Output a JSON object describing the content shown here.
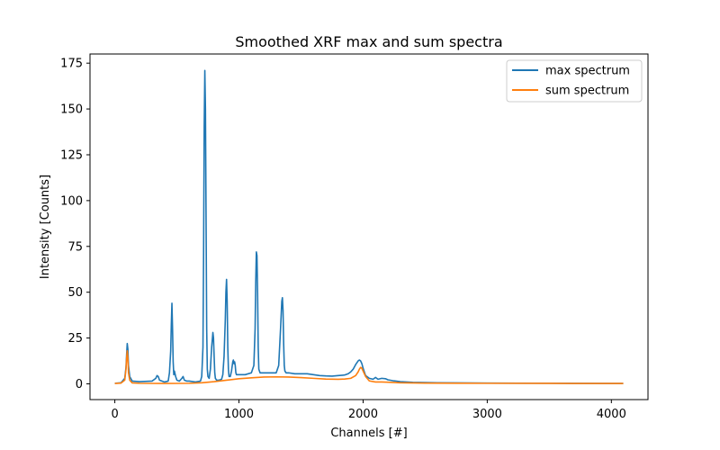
{
  "chart_data": {
    "type": "line",
    "title": "Smoothed XRF max and sum spectra",
    "xlabel": "Channels [#]",
    "ylabel": "Intensity [Counts]",
    "xlim": [
      -200,
      4295
    ],
    "ylim": [
      -8.6,
      180
    ],
    "xticks": [
      0,
      1000,
      2000,
      3000,
      4000
    ],
    "yticks": [
      0,
      25,
      50,
      75,
      100,
      125,
      150,
      175
    ],
    "grid": false,
    "legend": {
      "position": "top-right"
    },
    "series": [
      {
        "name": "max spectrum",
        "color": "#1f77b4",
        "x": [
          0,
          50,
          80,
          90,
          95,
          100,
          105,
          110,
          120,
          140,
          200,
          300,
          330,
          340,
          350,
          360,
          400,
          430,
          440,
          450,
          455,
          460,
          465,
          470,
          475,
          480,
          490,
          500,
          520,
          540,
          550,
          560,
          580,
          600,
          650,
          690,
          700,
          710,
          715,
          720,
          725,
          730,
          735,
          740,
          745,
          750,
          760,
          770,
          780,
          790,
          795,
          800,
          805,
          810,
          820,
          840,
          860,
          870,
          880,
          890,
          895,
          900,
          905,
          910,
          915,
          920,
          930,
          940,
          950,
          955,
          960,
          965,
          970,
          975,
          980,
          990,
          1000,
          1050,
          1100,
          1120,
          1130,
          1135,
          1140,
          1145,
          1150,
          1155,
          1160,
          1170,
          1180,
          1200,
          1250,
          1300,
          1320,
          1335,
          1345,
          1350,
          1355,
          1360,
          1365,
          1370,
          1380,
          1400,
          1450,
          1500,
          1550,
          1600,
          1650,
          1700,
          1750,
          1800,
          1850,
          1880,
          1900,
          1920,
          1940,
          1960,
          1970,
          1980,
          1990,
          2000,
          2020,
          2050,
          2080,
          2100,
          2120,
          2150,
          2180,
          2200,
          2250,
          2300,
          2400,
          2600,
          3000,
          3500,
          4000,
          4096
        ],
        "y": [
          0.3,
          0.6,
          3,
          9,
          16,
          22,
          19,
          10,
          4,
          1.5,
          1.2,
          1.5,
          3,
          4.5,
          4,
          2,
          1,
          1.5,
          6,
          18,
          32,
          44,
          30,
          12,
          5,
          7,
          4,
          2,
          1.5,
          3,
          4,
          2,
          1.5,
          1.5,
          1,
          1.5,
          4,
          20,
          70,
          140,
          171,
          150,
          90,
          30,
          8,
          4,
          3,
          8,
          20,
          28,
          25,
          15,
          6,
          3,
          2,
          2,
          2.5,
          5,
          15,
          35,
          50,
          57,
          45,
          20,
          8,
          4,
          4,
          7,
          12,
          13,
          11,
          12,
          10,
          6,
          5,
          5,
          5,
          5,
          6,
          10,
          30,
          55,
          72,
          70,
          50,
          20,
          8,
          6,
          6,
          6,
          6,
          6,
          10,
          30,
          45,
          47,
          40,
          22,
          10,
          7,
          6,
          6,
          5.5,
          5.5,
          5.5,
          5,
          4.5,
          4.3,
          4.2,
          4.5,
          4.8,
          5.5,
          6.5,
          8,
          10.5,
          12.5,
          13,
          12.5,
          11,
          8.5,
          4.5,
          3,
          2.5,
          3.5,
          2.5,
          3,
          2.8,
          2.2,
          1.6,
          1.2,
          0.8,
          0.6,
          0.4,
          0.3,
          0.2,
          0.2
        ]
      },
      {
        "name": "sum spectrum",
        "color": "#ff7f0e",
        "x": [
          0,
          50,
          80,
          90,
          95,
          100,
          105,
          110,
          120,
          140,
          200,
          400,
          600,
          700,
          800,
          900,
          1000,
          1100,
          1200,
          1300,
          1400,
          1500,
          1600,
          1700,
          1800,
          1850,
          1900,
          1940,
          1960,
          1970,
          1980,
          1990,
          2000,
          2020,
          2050,
          2100,
          2150,
          2200,
          2300,
          2500,
          3000,
          3500,
          4000,
          4096
        ],
        "y": [
          0.2,
          0.4,
          2,
          8,
          14,
          18,
          14,
          6,
          2,
          0.5,
          0.3,
          0.2,
          0.3,
          0.6,
          1.2,
          2.0,
          2.8,
          3.3,
          3.7,
          3.8,
          3.7,
          3.4,
          3.0,
          2.6,
          2.5,
          2.6,
          3.0,
          4.5,
          6.5,
          8.0,
          9.0,
          8.5,
          7.0,
          4.0,
          1.6,
          1.0,
          1.0,
          0.9,
          0.6,
          0.4,
          0.3,
          0.25,
          0.2,
          0.2
        ]
      }
    ]
  }
}
